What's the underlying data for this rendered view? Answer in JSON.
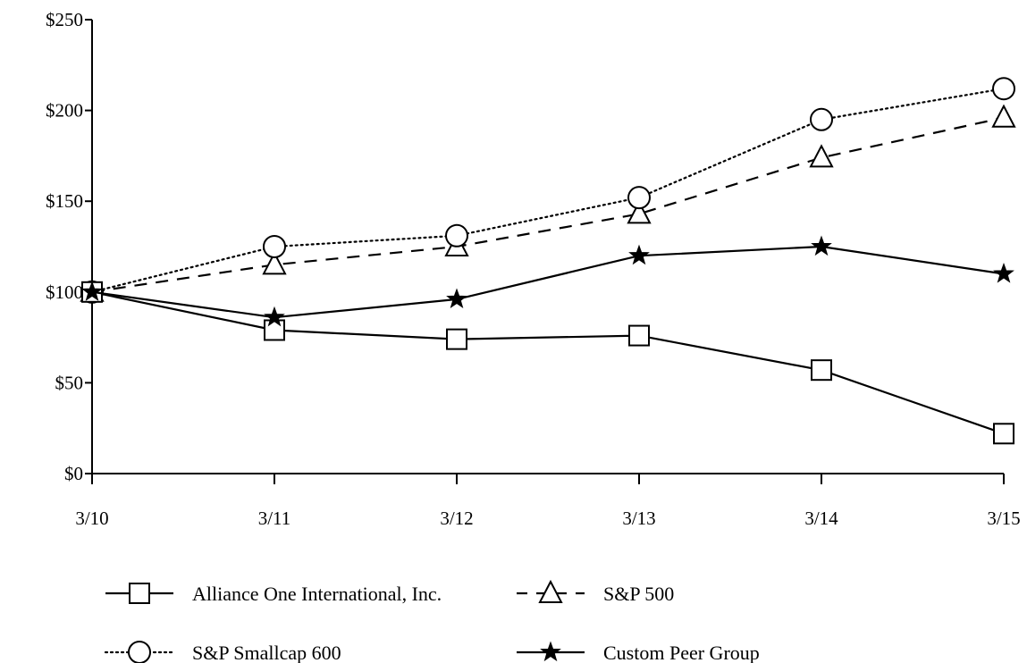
{
  "chart_data": {
    "type": "line",
    "title": "",
    "xlabel": "",
    "ylabel": "",
    "categories": [
      "3/10",
      "3/11",
      "3/12",
      "3/13",
      "3/14",
      "3/15"
    ],
    "y_ticks": [
      "$0",
      "$50",
      "$100",
      "$150",
      "$200",
      "$250"
    ],
    "y_tick_values": [
      0,
      50,
      100,
      150,
      200,
      250
    ],
    "ylim": [
      0,
      250
    ],
    "grid": false,
    "legend_position": "bottom",
    "series": [
      {
        "name": "Alliance One International, Inc.",
        "values": [
          100,
          79,
          74,
          76,
          57,
          22
        ],
        "line_style": "solid",
        "marker": "square",
        "color": "#000000"
      },
      {
        "name": "S&P 500",
        "values": [
          100,
          115,
          125,
          143,
          174,
          196
        ],
        "line_style": "dashed",
        "marker": "triangle",
        "color": "#000000"
      },
      {
        "name": "S&P Smallcap 600",
        "values": [
          100,
          125,
          131,
          152,
          195,
          212
        ],
        "line_style": "dotted",
        "marker": "circle",
        "color": "#000000"
      },
      {
        "name": "Custom Peer Group",
        "values": [
          100,
          86,
          96,
          120,
          125,
          110
        ],
        "line_style": "solid",
        "marker": "star",
        "color": "#000000"
      }
    ]
  }
}
